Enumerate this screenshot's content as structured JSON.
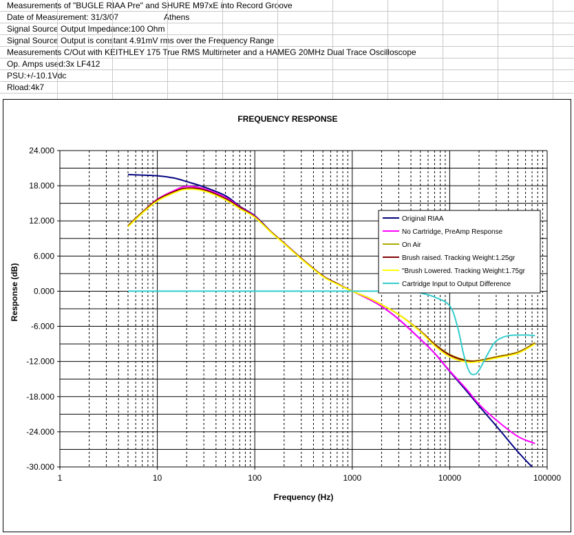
{
  "sheet": {
    "rows": [
      {
        "text": "Measurements of \"BUGLE RIAA Pre\" and SHURE M97xE into Record Groove",
        "extra": ""
      },
      {
        "text": "Date of Measurement: 31/3/07",
        "extra": "Athens"
      },
      {
        "text": "Signal Source Output Impedance:100 Ohm",
        "extra": ""
      },
      {
        "text": "Signal Source Output is constant 4.91mV rms over the Frequency Range",
        "extra": ""
      },
      {
        "text": "Measurements C/Out with KEITHLEY 175 True RMS Multimeter and a HAMEG 20MHz Dual Trace Oscilloscope",
        "extra": ""
      },
      {
        "text": "Op. Amps used:3x LF412",
        "extra": ""
      },
      {
        "text": "PSU:+/-10.1Vdc",
        "extra": ""
      },
      {
        "text": "Rload:4k7",
        "extra": ""
      }
    ]
  },
  "chart_data": {
    "type": "line",
    "title": "FREQUENCY RESPONSE",
    "xlabel": "Frequency (Hz)",
    "ylabel": "Response (dB)",
    "x_scale": "log",
    "xlim": [
      1,
      100000
    ],
    "ylim": [
      -30,
      24
    ],
    "x_ticks": [
      "1",
      "10",
      "100",
      "1000",
      "10000",
      "100000"
    ],
    "y_ticks": [
      "24.000",
      "18.000",
      "12.000",
      "6.000",
      "0.000",
      "-6.000",
      "-12.000",
      "-18.000",
      "-24.000",
      "-30.000"
    ],
    "y_tick_values": [
      24,
      18,
      12,
      6,
      0,
      -6,
      -12,
      -18,
      -24,
      -30
    ],
    "grid": true,
    "legend_position": "right",
    "series": [
      {
        "name": "Original RIAA",
        "color": "#000080",
        "points": [
          [
            5,
            19.9
          ],
          [
            10,
            19.7
          ],
          [
            15,
            19.3
          ],
          [
            20,
            18.7
          ],
          [
            30,
            17.8
          ],
          [
            50,
            16.3
          ],
          [
            70,
            14.5
          ],
          [
            100,
            12.9
          ],
          [
            150,
            10.0
          ],
          [
            200,
            8.2
          ],
          [
            300,
            5.6
          ],
          [
            500,
            2.6
          ],
          [
            700,
            1.3
          ],
          [
            1000,
            0.0
          ],
          [
            1500,
            -1.4
          ],
          [
            2000,
            -2.6
          ],
          [
            3000,
            -4.8
          ],
          [
            5000,
            -8.2
          ],
          [
            7000,
            -10.6
          ],
          [
            10000,
            -13.7
          ],
          [
            15000,
            -17.1
          ],
          [
            20000,
            -19.6
          ],
          [
            30000,
            -23.0
          ],
          [
            50000,
            -27.4
          ],
          [
            70000,
            -30.0
          ]
        ]
      },
      {
        "name": "No Cartridge, PreAmp Response",
        "color": "#ff00ff",
        "points": [
          [
            5,
            11.2
          ],
          [
            7,
            13.5
          ],
          [
            10,
            15.7
          ],
          [
            15,
            17.2
          ],
          [
            20,
            17.9
          ],
          [
            30,
            17.5
          ],
          [
            50,
            16.0
          ],
          [
            70,
            14.4
          ],
          [
            100,
            12.8
          ],
          [
            150,
            10.0
          ],
          [
            200,
            8.2
          ],
          [
            300,
            5.6
          ],
          [
            500,
            2.6
          ],
          [
            700,
            1.3
          ],
          [
            1000,
            0.0
          ],
          [
            1500,
            -1.4
          ],
          [
            2000,
            -2.6
          ],
          [
            3000,
            -4.8
          ],
          [
            5000,
            -8.2
          ],
          [
            7000,
            -10.6
          ],
          [
            10000,
            -13.6
          ],
          [
            15000,
            -16.8
          ],
          [
            20000,
            -19.3
          ],
          [
            30000,
            -22.0
          ],
          [
            50000,
            -24.8
          ],
          [
            75000,
            -26.0
          ]
        ]
      },
      {
        "name": "On Air",
        "color": "#aaaa00",
        "points": [
          [
            5,
            11.2
          ],
          [
            7,
            13.5
          ],
          [
            10,
            15.6
          ],
          [
            15,
            17.0
          ],
          [
            20,
            17.6
          ],
          [
            30,
            17.3
          ],
          [
            50,
            15.8
          ],
          [
            70,
            14.3
          ],
          [
            100,
            12.7
          ],
          [
            150,
            10.0
          ],
          [
            200,
            8.2
          ],
          [
            300,
            5.6
          ],
          [
            500,
            2.6
          ],
          [
            700,
            1.3
          ],
          [
            1000,
            0.0
          ],
          [
            1500,
            -1.2
          ],
          [
            2000,
            -2.3
          ],
          [
            3000,
            -4.0
          ],
          [
            5000,
            -6.8
          ],
          [
            7000,
            -9.0
          ],
          [
            10000,
            -10.8
          ],
          [
            15000,
            -11.8
          ],
          [
            20000,
            -11.8
          ],
          [
            30000,
            -11.2
          ],
          [
            50000,
            -10.4
          ],
          [
            75000,
            -8.8
          ]
        ]
      },
      {
        "name": "Brush raised. Tracking Weight:1.25gr",
        "color": "#800000",
        "points": [
          [
            5,
            11.1
          ],
          [
            7,
            13.4
          ],
          [
            10,
            15.6
          ],
          [
            15,
            17.0
          ],
          [
            20,
            17.6
          ],
          [
            30,
            17.3
          ],
          [
            50,
            15.8
          ],
          [
            70,
            14.3
          ],
          [
            100,
            12.7
          ],
          [
            150,
            10.0
          ],
          [
            200,
            8.2
          ],
          [
            300,
            5.6
          ],
          [
            500,
            2.6
          ],
          [
            700,
            1.3
          ],
          [
            1000,
            0.0
          ],
          [
            1500,
            -1.2
          ],
          [
            2000,
            -2.3
          ],
          [
            3000,
            -4.0
          ],
          [
            5000,
            -6.8
          ],
          [
            7000,
            -9.1
          ],
          [
            10000,
            -10.9
          ],
          [
            15000,
            -11.9
          ],
          [
            20000,
            -11.9
          ],
          [
            30000,
            -11.3
          ],
          [
            50000,
            -10.5
          ],
          [
            75000,
            -8.9
          ]
        ]
      },
      {
        "name": "\"Brush Lowered. Tracking Weight:1.75gr",
        "color": "#ffff00",
        "points": [
          [
            5,
            11.0
          ],
          [
            7,
            13.3
          ],
          [
            10,
            15.4
          ],
          [
            15,
            16.8
          ],
          [
            20,
            17.4
          ],
          [
            30,
            17.1
          ],
          [
            50,
            15.6
          ],
          [
            70,
            14.1
          ],
          [
            100,
            12.6
          ],
          [
            150,
            9.9
          ],
          [
            200,
            8.1
          ],
          [
            300,
            5.5
          ],
          [
            500,
            2.5
          ],
          [
            700,
            1.2
          ],
          [
            1000,
            0.0
          ],
          [
            1500,
            -1.2
          ],
          [
            2000,
            -2.3
          ],
          [
            3000,
            -4.0
          ],
          [
            5000,
            -6.9
          ],
          [
            7000,
            -9.3
          ],
          [
            10000,
            -11.2
          ],
          [
            15000,
            -12.1
          ],
          [
            20000,
            -12.0
          ],
          [
            30000,
            -11.4
          ],
          [
            50000,
            -10.6
          ],
          [
            75000,
            -9.0
          ]
        ]
      },
      {
        "name": "Cartridge Input to Output Difference",
        "color": "#33cccc",
        "points": [
          [
            5,
            0.0
          ],
          [
            10,
            0.0
          ],
          [
            20,
            0.0
          ],
          [
            50,
            0.0
          ],
          [
            100,
            0.0
          ],
          [
            200,
            0.0
          ],
          [
            500,
            0.0
          ],
          [
            1000,
            0.0
          ],
          [
            2000,
            0.0
          ],
          [
            3000,
            0.0
          ],
          [
            4000,
            0.0
          ],
          [
            5000,
            -0.3
          ],
          [
            7000,
            -1.0
          ],
          [
            10000,
            -2.5
          ],
          [
            12000,
            -6.0
          ],
          [
            14000,
            -11.0
          ],
          [
            16000,
            -13.8
          ],
          [
            18000,
            -14.2
          ],
          [
            20000,
            -13.5
          ],
          [
            25000,
            -10.5
          ],
          [
            30000,
            -8.5
          ],
          [
            40000,
            -7.6
          ],
          [
            60000,
            -7.5
          ],
          [
            75000,
            -7.6
          ]
        ]
      }
    ]
  }
}
